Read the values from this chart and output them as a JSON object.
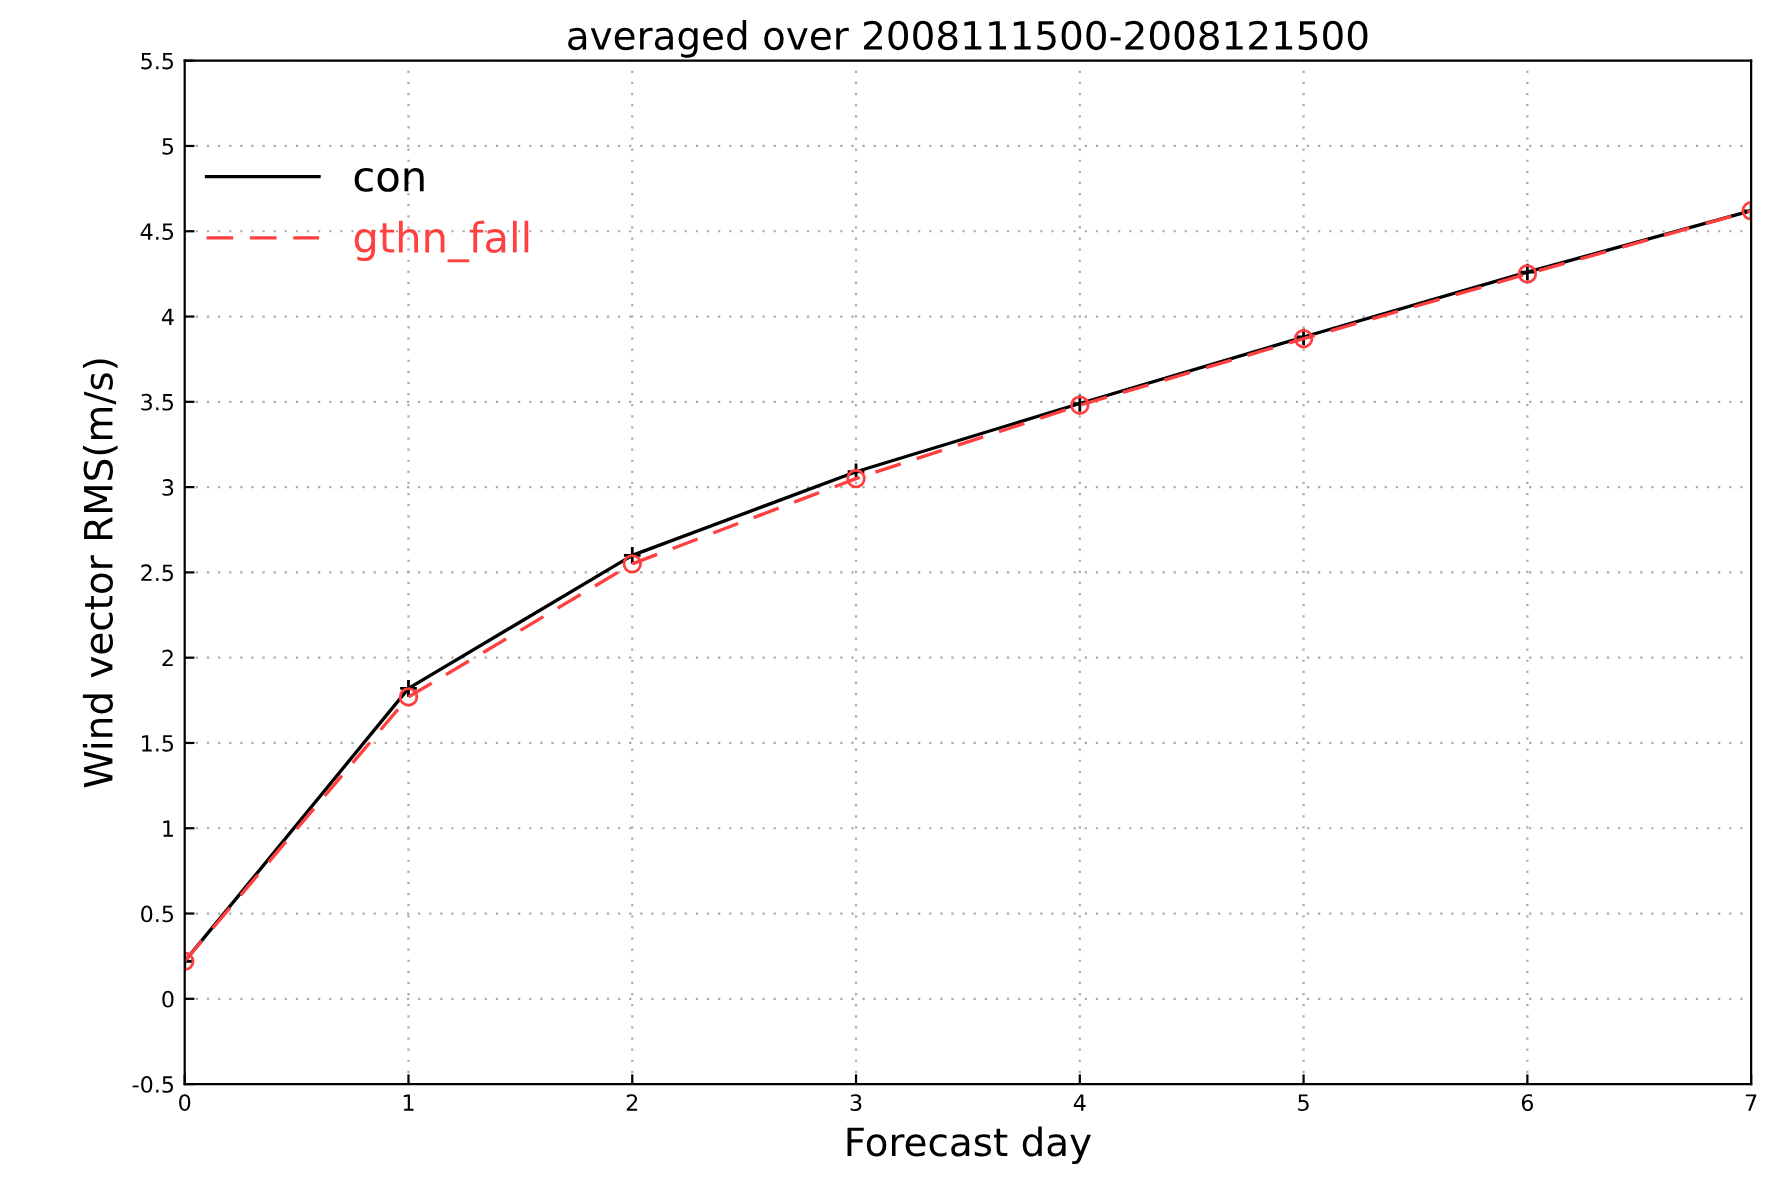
{
  "chart_data": {
    "type": "line",
    "title": "averaged over 2008111500-2008121500",
    "xlabel": "Forecast day",
    "ylabel": "Wind vector RMS(m/s)",
    "x": [
      0,
      1,
      2,
      3,
      4,
      5,
      6,
      7
    ],
    "series": [
      {
        "name": "con",
        "color": "#000000",
        "marker": "cross",
        "line_style": "solid",
        "values": [
          0.22,
          1.82,
          2.6,
          3.09,
          3.49,
          3.88,
          4.26,
          4.62
        ]
      },
      {
        "name": "gthn_fall",
        "color": "#ff4040",
        "marker": "circle",
        "line_style": "dashed",
        "values": [
          0.22,
          1.77,
          2.55,
          3.05,
          3.48,
          3.87,
          4.25,
          4.62
        ]
      }
    ],
    "xlim": [
      0,
      7
    ],
    "xticks": [
      0,
      1,
      2,
      3,
      4,
      5,
      6,
      7
    ],
    "ylim": [
      -0.5,
      5.5
    ],
    "yticks": [
      -0.5,
      0,
      0.5,
      1,
      1.5,
      2,
      2.5,
      3,
      3.5,
      4,
      4.5,
      5,
      5.5
    ],
    "grid": true,
    "legend": "top left"
  }
}
